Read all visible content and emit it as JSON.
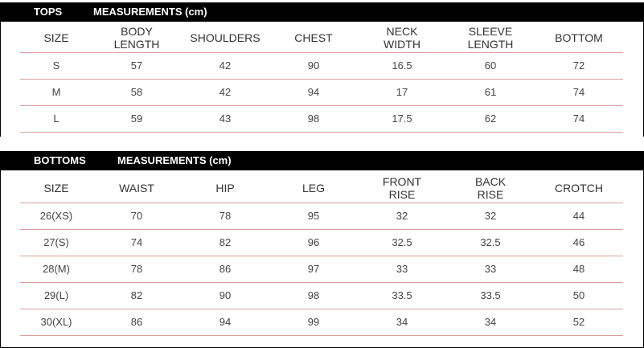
{
  "tops": {
    "title": "TOPS",
    "subtitle": "MEASUREMENTS (cm)",
    "columns": [
      "SIZE",
      "BODY\nLENGTH",
      "SHOULDERS",
      "CHEST",
      "NECK\nWIDTH",
      "SLEEVE\nLENGTH",
      "BOTTOM"
    ],
    "rows": [
      [
        "S",
        "57",
        "42",
        "90",
        "16.5",
        "60",
        "72"
      ],
      [
        "M",
        "58",
        "42",
        "94",
        "17",
        "61",
        "74"
      ],
      [
        "L",
        "59",
        "43",
        "98",
        "17.5",
        "62",
        "74"
      ]
    ]
  },
  "bottoms": {
    "title": "BOTTOMS",
    "subtitle": "MEASUREMENTS (cm)",
    "columns": [
      "SIZE",
      "WAIST",
      "HIP",
      "LEG",
      "FRONT\nRISE",
      "BACK\nRISE",
      "CROTCH"
    ],
    "rows": [
      [
        "26(XS)",
        "70",
        "78",
        "95",
        "32",
        "32",
        "44"
      ],
      [
        "27(S)",
        "74",
        "82",
        "96",
        "32.5",
        "32.5",
        "46"
      ],
      [
        "28(M)",
        "78",
        "86",
        "97",
        "33",
        "33",
        "48"
      ],
      [
        "29(L)",
        "82",
        "90",
        "98",
        "33.5",
        "33.5",
        "50"
      ],
      [
        "30(XL)",
        "86",
        "94",
        "99",
        "34",
        "34",
        "52"
      ]
    ]
  }
}
